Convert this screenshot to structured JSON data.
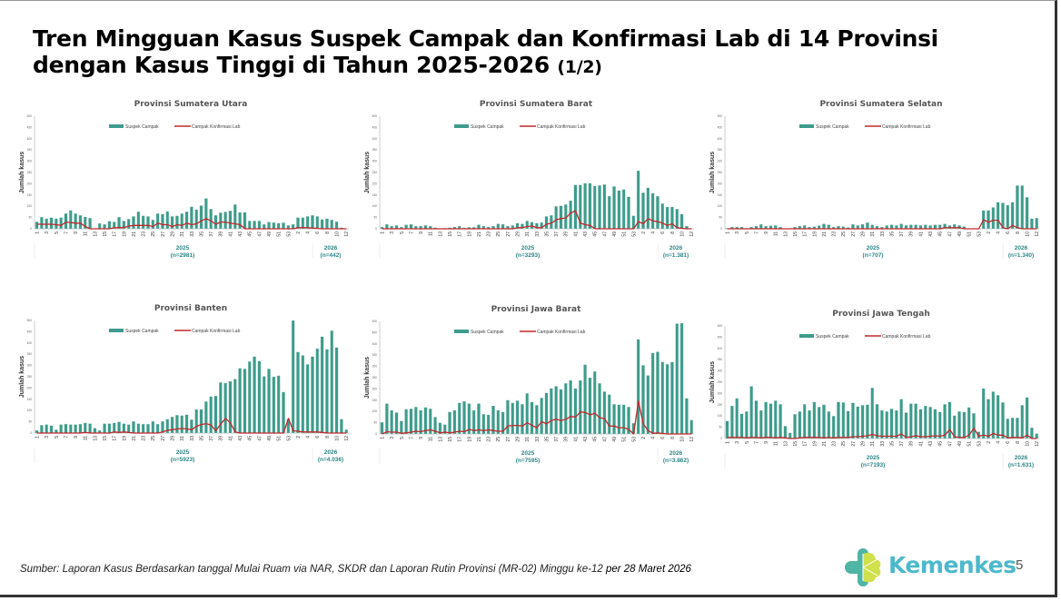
{
  "title": {
    "main": "Tren Mingguan Kasus Suspek Campak dan Konfirmasi Lab di 14 Provinsi dengan Kasus Tinggi di Tahun 2025-2026",
    "part": "(1/2)"
  },
  "footer": {
    "source": "Sumber: Laporan Kasus Berdasarkan tanggal Mulai Ruam via  NAR, SKDR dan Laporan Rutin Provinsi (MR-02) Minggu ke-12 ",
    "date": " per 28 Maret 2026"
  },
  "logo": {
    "text": "Kemenkes"
  },
  "page_number": "5",
  "colors": {
    "bar": "#3d9c8b",
    "line": "#c0282c",
    "year": "#2b8785"
  },
  "chart_data": [
    {
      "type": "bar+line",
      "title": "Provinsi Sumatera Utara",
      "ylabel": "Jumlah kasus",
      "ylim": [
        0,
        500
      ],
      "yticks": [
        "0",
        "50",
        "100",
        "150",
        "200",
        "250",
        "300",
        "350",
        "400",
        "450",
        "500"
      ],
      "legend": [
        "Suspek Campak",
        "Campak Konfirmasi Lab"
      ],
      "years": [
        {
          "label": "2025",
          "n": "(n=2981)"
        },
        {
          "label": "2026",
          "n": "(n=442)"
        }
      ],
      "suspek": [
        31,
        52,
        45,
        50,
        45,
        50,
        68,
        82,
        68,
        60,
        53,
        48,
        0,
        24,
        20,
        34,
        31,
        52,
        35,
        43,
        55,
        76,
        58,
        55,
        40,
        68,
        65,
        77,
        55,
        58,
        68,
        76,
        98,
        85,
        103,
        135,
        88,
        60,
        72,
        75,
        80,
        108,
        73,
        73,
        35,
        35,
        35,
        20,
        30,
        28,
        25,
        27,
        15,
        20,
        50,
        50,
        55,
        60,
        55,
        42,
        45,
        40,
        32,
        5,
        0
      ],
      "konfirmasi": [
        20,
        20,
        20,
        20,
        18,
        15,
        30,
        28,
        25,
        25,
        10,
        0,
        0,
        0,
        0,
        0,
        5,
        5,
        5,
        12,
        15,
        15,
        15,
        15,
        10,
        25,
        18,
        18,
        10,
        18,
        15,
        25,
        18,
        22,
        35,
        45,
        35,
        20,
        30,
        30,
        25,
        22,
        18,
        0,
        0,
        0,
        0,
        0,
        0,
        0,
        0,
        0,
        0,
        0,
        5,
        5,
        5,
        3,
        2,
        0,
        0,
        0,
        0,
        0,
        0
      ]
    },
    {
      "type": "bar+line",
      "title": "Provinsi Sumatera Barat",
      "ylabel": "Jumlah kasus",
      "ylim": [
        0,
        500
      ],
      "yticks": [
        "0",
        "50",
        "100",
        "150",
        "200",
        "250",
        "300",
        "350",
        "400",
        "450",
        "500"
      ],
      "legend": [
        "Suspek Campak",
        "Campak Konfirmasi Lab"
      ],
      "years": [
        {
          "label": "2025",
          "n": "(n=3293)"
        },
        {
          "label": "2026",
          "n": "(n=1.381)"
        }
      ],
      "suspek": [
        8,
        20,
        12,
        15,
        8,
        18,
        20,
        12,
        12,
        15,
        12,
        5,
        2,
        3,
        5,
        8,
        12,
        5,
        7,
        7,
        18,
        12,
        8,
        12,
        22,
        20,
        12,
        15,
        25,
        22,
        35,
        30,
        25,
        28,
        55,
        60,
        100,
        102,
        108,
        125,
        195,
        195,
        202,
        202,
        190,
        193,
        197,
        145,
        188,
        170,
        175,
        142,
        58,
        258,
        160,
        182,
        158,
        145,
        112,
        97,
        97,
        88,
        65,
        12,
        0
      ],
      "konfirmasi": [
        0,
        0,
        0,
        0,
        0,
        0,
        0,
        0,
        0,
        0,
        0,
        0,
        0,
        0,
        0,
        0,
        0,
        0,
        0,
        0,
        0,
        0,
        0,
        0,
        0,
        0,
        0,
        0,
        5,
        5,
        10,
        12,
        5,
        5,
        20,
        25,
        40,
        45,
        48,
        70,
        80,
        25,
        18,
        15,
        0,
        0,
        0,
        0,
        0,
        0,
        0,
        0,
        0,
        32,
        22,
        45,
        35,
        32,
        25,
        15,
        22,
        5,
        2,
        0,
        0
      ]
    },
    {
      "type": "bar+line",
      "title": "Provinsi Sumatera Selatan",
      "ylabel": "Jumlah kasus",
      "ylim": [
        0,
        500
      ],
      "yticks": [
        "0",
        "50",
        "100",
        "150",
        "200",
        "250",
        "300",
        "350",
        "400",
        "450",
        "500"
      ],
      "legend": [
        "Suspek Campak",
        "Campak Konfirmasi Lab"
      ],
      "years": [
        {
          "label": "2025",
          "n": "(n=707)"
        },
        {
          "label": "2026",
          "n": "(n=1.340)"
        }
      ],
      "suspek": [
        3,
        8,
        8,
        8,
        3,
        8,
        12,
        20,
        12,
        14,
        15,
        8,
        0,
        0,
        8,
        12,
        15,
        8,
        10,
        14,
        22,
        18,
        8,
        12,
        10,
        6,
        20,
        15,
        20,
        28,
        18,
        12,
        8,
        15,
        18,
        15,
        22,
        15,
        18,
        18,
        15,
        18,
        15,
        18,
        18,
        22,
        15,
        20,
        15,
        10,
        0,
        0,
        0,
        82,
        82,
        95,
        118,
        115,
        105,
        118,
        192,
        192,
        140,
        45,
        48
      ],
      "konfirmasi": [
        0,
        0,
        0,
        0,
        0,
        0,
        0,
        0,
        0,
        0,
        0,
        0,
        0,
        0,
        0,
        0,
        0,
        0,
        0,
        0,
        0,
        0,
        0,
        0,
        0,
        0,
        0,
        0,
        0,
        0,
        0,
        0,
        0,
        0,
        0,
        0,
        0,
        0,
        0,
        0,
        0,
        0,
        0,
        0,
        0,
        5,
        5,
        5,
        5,
        0,
        0,
        0,
        0,
        40,
        30,
        38,
        38,
        5,
        0,
        15,
        5,
        0,
        0,
        0,
        0
      ]
    },
    {
      "type": "bar+line",
      "title": "Provinsi Banten",
      "ylabel": "Jumlah kasus",
      "ylim": [
        0,
        500
      ],
      "yticks": [
        "0",
        "50",
        "100",
        "150",
        "200",
        "250",
        "300",
        "350",
        "400",
        "450",
        "500"
      ],
      "legend": [
        "Suspek Campak",
        "Campak Konfirmasi Lab"
      ],
      "years": [
        {
          "label": "2025",
          "n": "(n=5923)"
        },
        {
          "label": "2026",
          "n": "(n=4.036)"
        }
      ],
      "suspek": [
        12,
        35,
        38,
        33,
        15,
        38,
        40,
        38,
        38,
        40,
        45,
        42,
        22,
        12,
        42,
        42,
        45,
        50,
        42,
        38,
        52,
        42,
        40,
        40,
        52,
        40,
        52,
        62,
        72,
        80,
        78,
        82,
        60,
        105,
        105,
        140,
        162,
        165,
        225,
        222,
        230,
        240,
        288,
        285,
        318,
        340,
        320,
        252,
        285,
        250,
        255,
        182,
        62,
        500,
        360,
        345,
        305,
        340,
        375,
        428,
        372,
        455,
        380,
        62,
        15
      ],
      "konfirmasi": [
        0,
        0,
        0,
        0,
        0,
        0,
        0,
        0,
        0,
        0,
        3,
        0,
        0,
        0,
        0,
        0,
        5,
        3,
        5,
        3,
        0,
        0,
        0,
        0,
        0,
        0,
        5,
        12,
        15,
        18,
        20,
        18,
        15,
        30,
        38,
        42,
        35,
        10,
        40,
        65,
        45,
        5,
        0,
        0,
        0,
        0,
        0,
        0,
        0,
        0,
        0,
        0,
        65,
        10,
        8,
        5,
        5,
        5,
        5,
        3,
        0,
        0,
        0,
        0,
        0
      ]
    },
    {
      "type": "bar+line",
      "title": "Provinsi Jawa Barat",
      "ylabel": "Jumlah kasus",
      "ylim": [
        0,
        500
      ],
      "yticks": [
        "0",
        "50",
        "100",
        "150",
        "200",
        "250",
        "300",
        "350",
        "400",
        "450",
        "500"
      ],
      "legend": [
        "Suspek Campak",
        "Campak Konfirmasi Lab"
      ],
      "years": [
        {
          "label": "2025",
          "n": "(n=7595)"
        },
        {
          "label": "2026",
          "n": "(n=3.862)"
        }
      ],
      "suspek": [
        52,
        135,
        105,
        95,
        58,
        110,
        112,
        120,
        105,
        118,
        112,
        75,
        50,
        42,
        98,
        105,
        138,
        145,
        135,
        105,
        135,
        88,
        85,
        125,
        105,
        98,
        150,
        138,
        148,
        132,
        180,
        142,
        128,
        160,
        182,
        202,
        212,
        198,
        225,
        238,
        202,
        238,
        308,
        250,
        278,
        225,
        188,
        175,
        132,
        130,
        130,
        120,
        48,
        420,
        305,
        260,
        360,
        365,
        320,
        310,
        320,
        490,
        492,
        158,
        62
      ],
      "konfirmasi": [
        0,
        10,
        8,
        8,
        3,
        5,
        8,
        12,
        10,
        15,
        18,
        12,
        5,
        8,
        5,
        8,
        12,
        10,
        20,
        15,
        18,
        15,
        18,
        15,
        12,
        12,
        35,
        38,
        38,
        35,
        50,
        38,
        28,
        55,
        45,
        60,
        65,
        60,
        65,
        78,
        75,
        98,
        95,
        85,
        92,
        72,
        68,
        35,
        35,
        28,
        28,
        20,
        0,
        145,
        45,
        15,
        3,
        5,
        2,
        0,
        0,
        0,
        0,
        0,
        0
      ]
    },
    {
      "type": "bar+line",
      "title": "Provinsi Jawa Tengah",
      "ylabel": "Jumlah kasus",
      "ylim": [
        0,
        500
      ],
      "yticks": [
        "0",
        "50",
        "100",
        "150",
        "200",
        "250",
        "300",
        "350",
        "400",
        "450",
        "500"
      ],
      "legend": [
        "Suspek Campak",
        "Campak Konfirmasi Lab"
      ],
      "years": [
        {
          "label": "2025",
          "n": "(n=7193)"
        },
        {
          "label": "2026",
          "n": "(n=1.631)"
        }
      ],
      "suspek": [
        78,
        145,
        178,
        110,
        120,
        232,
        168,
        125,
        162,
        155,
        168,
        152,
        55,
        25,
        108,
        120,
        152,
        125,
        162,
        140,
        150,
        120,
        100,
        162,
        160,
        122,
        158,
        142,
        148,
        150,
        225,
        152,
        125,
        120,
        132,
        125,
        175,
        115,
        155,
        155,
        130,
        145,
        140,
        130,
        118,
        152,
        162,
        102,
        120,
        118,
        138,
        112,
        30,
        222,
        175,
        208,
        192,
        160,
        88,
        92,
        92,
        148,
        182,
        48,
        22
      ],
      "konfirmasi": [
        5,
        5,
        5,
        5,
        3,
        5,
        5,
        3,
        5,
        5,
        3,
        5,
        3,
        0,
        0,
        3,
        5,
        5,
        5,
        5,
        3,
        5,
        3,
        5,
        5,
        5,
        8,
        8,
        10,
        12,
        18,
        12,
        10,
        10,
        10,
        10,
        20,
        5,
        8,
        12,
        8,
        8,
        10,
        12,
        10,
        15,
        40,
        8,
        5,
        5,
        15,
        45,
        10,
        15,
        10,
        22,
        15,
        15,
        3,
        5,
        5,
        3,
        15,
        0,
        0
      ]
    }
  ],
  "x_categories": [
    "1",
    "2",
    "3",
    "4",
    "5",
    "6",
    "7",
    "8",
    "9",
    "10",
    "11",
    "12",
    "13",
    "14",
    "15",
    "16",
    "17",
    "18",
    "19",
    "20",
    "21",
    "22",
    "23",
    "24",
    "25",
    "26",
    "27",
    "28",
    "29",
    "30",
    "31",
    "32",
    "33",
    "34",
    "35",
    "36",
    "37",
    "38",
    "39",
    "40",
    "41",
    "42",
    "43",
    "44",
    "45",
    "46",
    "47",
    "48",
    "49",
    "50",
    "51",
    "52",
    "53",
    "1",
    "2",
    "3",
    "4",
    "5",
    "6",
    "7",
    "8",
    "9",
    "10",
    "11",
    "12"
  ]
}
